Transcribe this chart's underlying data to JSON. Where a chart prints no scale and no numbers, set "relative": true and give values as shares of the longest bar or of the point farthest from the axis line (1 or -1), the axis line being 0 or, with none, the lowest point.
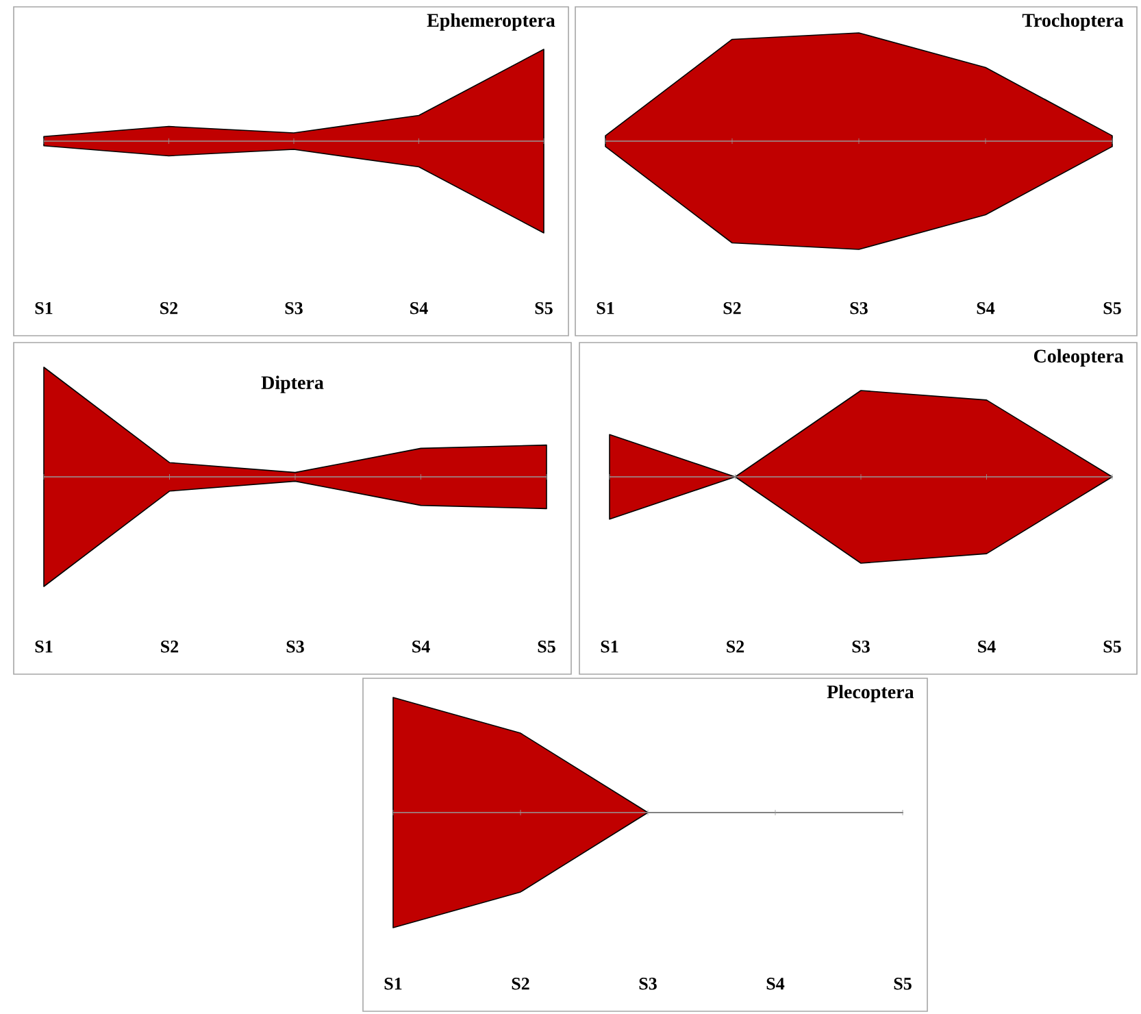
{
  "chart_data": [
    {
      "type": "area",
      "title": "Ephemeroptera",
      "relative": true,
      "categories": [
        "S1",
        "S2",
        "S3",
        "S4",
        "S5"
      ],
      "series": [
        {
          "color": "#c00000",
          "values": [
            0.05,
            0.16,
            0.09,
            0.28,
            1
          ]
        }
      ]
    },
    {
      "type": "area",
      "title": "Trochoptera",
      "relative": true,
      "categories": [
        "S1",
        "S2",
        "S3",
        "S4",
        "S5"
      ],
      "series": [
        {
          "color": "#c00000",
          "values": [
            0.05,
            0.94,
            1,
            0.68,
            0.05
          ]
        }
      ]
    },
    {
      "type": "area",
      "title": "Diptera",
      "relative": true,
      "categories": [
        "S1",
        "S2",
        "S3",
        "S4",
        "S5"
      ],
      "series": [
        {
          "color": "#c00000",
          "values": [
            1,
            0.13,
            0.04,
            0.26,
            0.29
          ]
        }
      ]
    },
    {
      "type": "area",
      "title": "Coleoptera",
      "relative": true,
      "categories": [
        "S1",
        "S2",
        "S3",
        "S4",
        "S5"
      ],
      "series": [
        {
          "color": "#c00000",
          "values": [
            0.49,
            0,
            1,
            0.89,
            0
          ]
        }
      ]
    },
    {
      "type": "area",
      "title": "Plecoptera",
      "relative": true,
      "categories": [
        "S1",
        "S2",
        "S3",
        "S4",
        "S5"
      ],
      "series": [
        {
          "color": "#c00000",
          "values": [
            1,
            0.69,
            0,
            0,
            0
          ]
        }
      ]
    }
  ]
}
